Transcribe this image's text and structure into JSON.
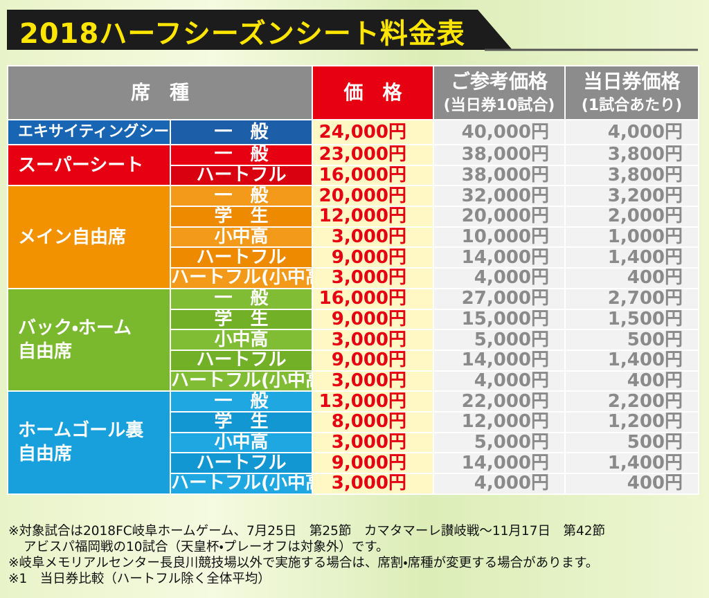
{
  "title": "2018ハーフシーズンシート料金表",
  "table": {
    "header": {
      "seat": "席　種",
      "price": "価　格",
      "reference": [
        "ご参考価格",
        "(当日券10試合)"
      ],
      "day": [
        "当日券価格",
        "(1試合あたり)"
      ]
    },
    "groups": [
      {
        "name": [
          "エキサイティングシート"
        ],
        "rows": [
          [
            "一　般",
            "24,000円",
            "40,000円",
            "4,000円"
          ]
        ]
      },
      {
        "name": [
          "スーパーシート"
        ],
        "rows": [
          [
            "一　般",
            "23,000円",
            "38,000円",
            "3,800円"
          ],
          [
            "ハートフル",
            "16,000円",
            "38,000円",
            "3,800円"
          ]
        ]
      },
      {
        "name": [
          "メイン自由席"
        ],
        "rows": [
          [
            "一　般",
            "20,000円",
            "32,000円",
            "3,200円"
          ],
          [
            "学　生",
            "12,000円",
            "20,000円",
            "2,000円"
          ],
          [
            "小中高",
            "3,000円",
            "10,000円",
            "1,000円"
          ],
          [
            "ハートフル",
            "9,000円",
            "14,000円",
            "1,400円"
          ],
          [
            "ハートフル(小中高)",
            "3,000円",
            "4,000円",
            "400円"
          ]
        ]
      },
      {
        "name": [
          "バック・ホーム",
          "自由席"
        ],
        "rows": [
          [
            "一　般",
            "16,000円",
            "27,000円",
            "2,700円"
          ],
          [
            "学　生",
            "9,000円",
            "15,000円",
            "1,500円"
          ],
          [
            "小中高",
            "3,000円",
            "5,000円",
            "500円"
          ],
          [
            "ハートフル",
            "9,000円",
            "14,000円",
            "1,400円"
          ],
          [
            "ハートフル(小中高)",
            "3,000円",
            "4,000円",
            "400円"
          ]
        ]
      },
      {
        "name": [
          "ホームゴール裏",
          "自由席"
        ],
        "rows": [
          [
            "一　般",
            "13,000円",
            "22,000円",
            "2,200円"
          ],
          [
            "学　生",
            "8,000円",
            "12,000円",
            "1,200円"
          ],
          [
            "小中高",
            "3,000円",
            "5,000円",
            "500円"
          ],
          [
            "ハートフル",
            "9,000円",
            "14,000円",
            "1,400円"
          ],
          [
            "ハートフル(小中高)",
            "3,000円",
            "4,000円",
            "400円"
          ]
        ]
      }
    ]
  },
  "notes": [
    "※対象試合は2018FC岐阜ホームゲーム、7月25日　第25節　カマタマーレ讃岐戦～11月17日　第42節",
    "アビスパ福岡戦の10試合（天皇杯・プレーオフは対象外）です。",
    "※岐阜メモリアルセンター長良川競技場以外で実施する場合は、席割・席種が変更する場合があります。",
    "※1　当日券比較（ハートフル除く全体平均）"
  ]
}
